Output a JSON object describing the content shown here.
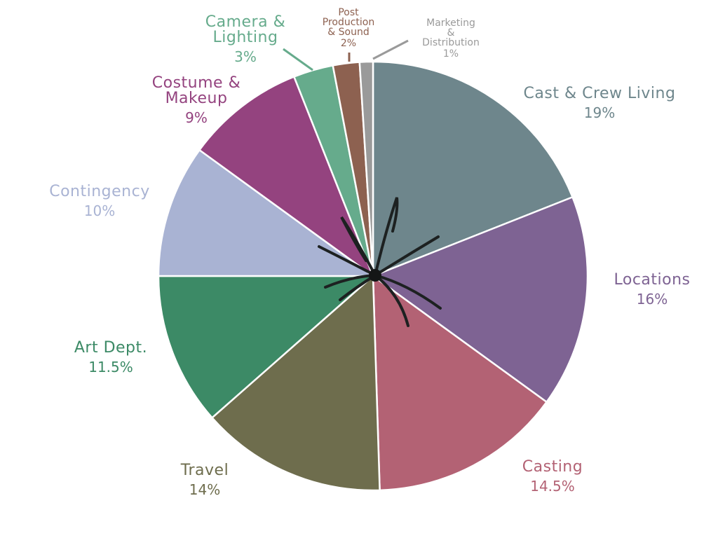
{
  "chart_data": {
    "type": "pie",
    "title": "",
    "slices": [
      {
        "label": [
          "Cast & Crew Living"
        ],
        "value": 19,
        "pct_label": "19%",
        "color": "#6E868C"
      },
      {
        "label": [
          "Locations"
        ],
        "value": 16,
        "pct_label": "16%",
        "color": "#7E6393"
      },
      {
        "label": [
          "Casting"
        ],
        "value": 14.5,
        "pct_label": "14.5%",
        "color": "#B36274"
      },
      {
        "label": [
          "Travel"
        ],
        "value": 14,
        "pct_label": "14%",
        "color": "#6E6D4D"
      },
      {
        "label": [
          "Art Dept."
        ],
        "value": 11.5,
        "pct_label": "11.5%",
        "color": "#3C8A66"
      },
      {
        "label": [
          "Contingency"
        ],
        "value": 10,
        "pct_label": "10%",
        "color": "#A9B3D3"
      },
      {
        "label": [
          "Costume &",
          "Makeup"
        ],
        "value": 9,
        "pct_label": "9%",
        "color": "#94437F"
      },
      {
        "label": [
          "Camera &",
          "Lighting"
        ],
        "value": 3,
        "pct_label": "3%",
        "color": "#66AB8C"
      },
      {
        "label": [
          "Post",
          "Production",
          "& Sound"
        ],
        "value": 2,
        "pct_label": "2%",
        "color": "#8D6150"
      },
      {
        "label": [
          "Marketing",
          "&",
          "Distribution"
        ],
        "value": 1,
        "pct_label": "1%",
        "color": "#9A9A9A"
      }
    ]
  }
}
